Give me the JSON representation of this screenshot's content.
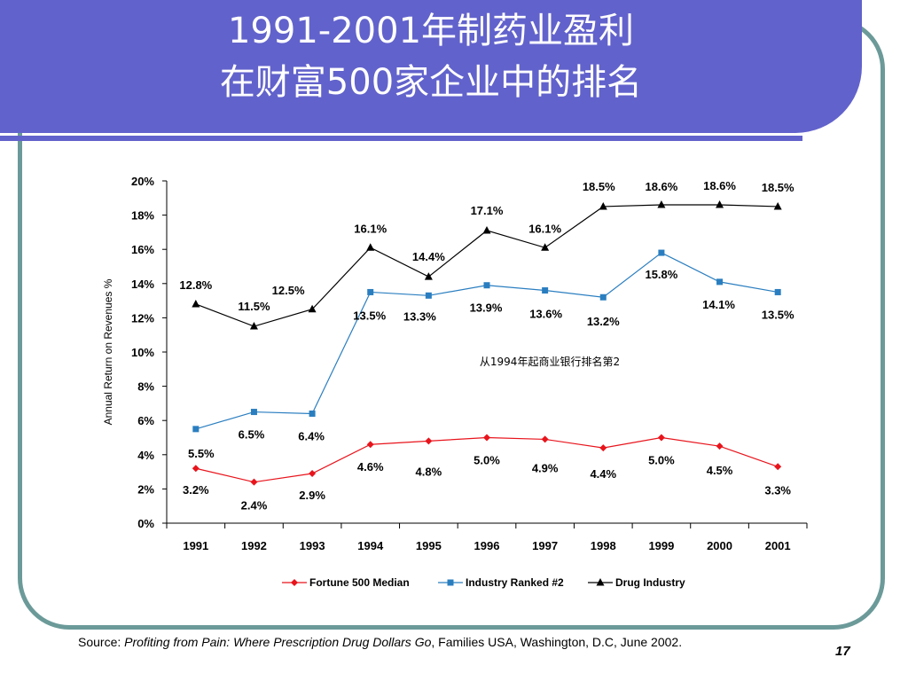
{
  "slide": {
    "title_line1": "1991-2001年制药业盈利",
    "title_line2": "在财富500家企业中的排名",
    "source_prefix": "Source: ",
    "source_title": "Profiting from Pain: Where Prescription Drug Dollars Go",
    "source_suffix": ", Families USA, Washington, D.C, June 2002.",
    "page_number": "17",
    "colors": {
      "banner": "#6262cc",
      "frame": "#6b9a99"
    }
  },
  "chart_data": {
    "type": "line",
    "title": "",
    "xlabel": "",
    "ylabel": "Annual Return on Revenues %",
    "categories": [
      "1991",
      "1992",
      "1993",
      "1994",
      "1995",
      "1996",
      "1997",
      "1998",
      "1999",
      "2000",
      "2001"
    ],
    "ylim": [
      0,
      20
    ],
    "yticks": [
      "0%",
      "2%",
      "4%",
      "6%",
      "8%",
      "10%",
      "12%",
      "14%",
      "16%",
      "18%",
      "20%"
    ],
    "grid": false,
    "legend_position": "bottom",
    "annotation": "从1994年起商业银行排名第2",
    "series": [
      {
        "name": "Fortune 500 Median",
        "color": "#e8141c",
        "marker": "diamond",
        "values": [
          3.2,
          2.4,
          2.9,
          4.6,
          4.8,
          5.0,
          4.9,
          4.4,
          5.0,
          4.5,
          3.3
        ],
        "labels": [
          "3.2%",
          "2.4%",
          "2.9%",
          "4.6%",
          "4.8%",
          "5.0%",
          "4.9%",
          "4.4%",
          "5.0%",
          "4.5%",
          "3.3%"
        ]
      },
      {
        "name": "Industry Ranked #2",
        "color": "#2a7ec0",
        "marker": "square",
        "values": [
          5.5,
          6.5,
          6.4,
          13.5,
          13.3,
          13.9,
          13.6,
          13.2,
          15.8,
          14.1,
          13.5
        ],
        "labels": [
          "5.5%",
          "6.5%",
          "6.4%",
          "13.5%",
          "13.3%",
          "13.9%",
          "13.6%",
          "13.2%",
          "15.8%",
          "14.1%",
          "13.5%"
        ]
      },
      {
        "name": "Drug Industry",
        "color": "#000000",
        "marker": "triangle",
        "values": [
          12.8,
          11.5,
          12.5,
          16.1,
          14.4,
          17.1,
          16.1,
          18.5,
          18.6,
          18.6,
          18.5
        ],
        "labels": [
          "12.8%",
          "11.5%",
          "12.5%",
          "16.1%",
          "14.4%",
          "17.1%",
          "16.1%",
          "18.5%",
          "18.6%",
          "18.6%",
          "18.5%"
        ]
      }
    ]
  }
}
